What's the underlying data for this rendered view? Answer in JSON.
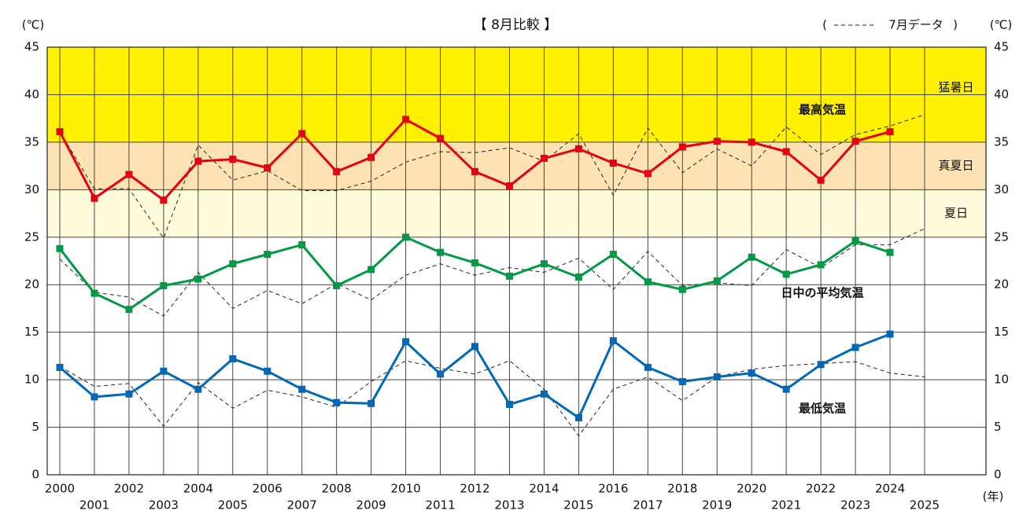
{
  "chart_data": {
    "type": "line",
    "title": "【 8月比較 】",
    "y_label": "(℃)",
    "x_label": "(年)",
    "categories": [
      "2000",
      "2001",
      "2002",
      "2003",
      "2004",
      "2005",
      "2006",
      "2007",
      "2008",
      "2009",
      "2010",
      "2011",
      "2012",
      "2013",
      "2014",
      "2015",
      "2016",
      "2017",
      "2018",
      "2019",
      "2020",
      "2021",
      "2022",
      "2023",
      "2024",
      "2025"
    ],
    "ylim": [
      0,
      45
    ],
    "yticks": [
      0,
      5,
      10,
      15,
      20,
      25,
      30,
      35,
      40,
      45
    ],
    "y2lim": [
      0,
      45
    ],
    "y2ticks": [
      0,
      5,
      10,
      15,
      20,
      25,
      30,
      35,
      40,
      45
    ],
    "grid": true,
    "bands": [
      {
        "label": "猛暑日",
        "from": 35,
        "to": 45,
        "color": "#fff100"
      },
      {
        "label": "真夏日",
        "from": 30,
        "to": 35,
        "color": "#fde2b4"
      },
      {
        "label": "夏日",
        "from": 25,
        "to": 30,
        "color": "#fffbdb"
      }
    ],
    "series": [
      {
        "name": "最高気温",
        "color": "#e60012",
        "values": [
          36.1,
          29.1,
          31.6,
          28.9,
          33.0,
          33.2,
          32.3,
          35.9,
          31.9,
          33.4,
          37.4,
          35.4,
          31.9,
          30.4,
          33.3,
          34.3,
          32.8,
          31.7,
          34.5,
          35.1,
          35.0,
          34.0,
          31.0,
          35.1,
          36.1,
          null
        ]
      },
      {
        "name": "日中の平均気温",
        "color": "#009944",
        "values": [
          23.8,
          19.1,
          17.4,
          19.9,
          20.6,
          22.2,
          23.2,
          24.2,
          19.9,
          21.6,
          25.0,
          23.4,
          22.3,
          20.9,
          22.2,
          20.8,
          23.2,
          20.3,
          19.5,
          20.4,
          22.9,
          21.1,
          22.1,
          24.6,
          23.4,
          null
        ]
      },
      {
        "name": "最低気温",
        "color": "#0068b7",
        "values": [
          11.3,
          8.2,
          8.5,
          10.9,
          9.0,
          12.2,
          10.9,
          9.0,
          7.6,
          7.5,
          14.0,
          10.6,
          13.5,
          7.4,
          8.5,
          6.0,
          14.1,
          11.3,
          9.8,
          10.3,
          10.7,
          9.0,
          11.6,
          13.4,
          14.8,
          null
        ]
      }
    ],
    "reference": {
      "open": "(",
      "name": "7月データ",
      "close": ")",
      "color": "#222222",
      "series": [
        {
          "values": [
            36.1,
            30.1,
            30.1,
            24.9,
            34.7,
            31.0,
            32.0,
            29.9,
            29.9,
            30.9,
            32.9,
            34.0,
            33.9,
            34.4,
            33.0,
            35.9,
            29.4,
            36.5,
            31.8,
            34.3,
            32.5,
            36.6,
            33.7,
            35.8,
            36.7,
            37.9
          ]
        },
        {
          "values": [
            22.7,
            19.2,
            18.7,
            16.7,
            21.3,
            17.5,
            19.4,
            18.0,
            20.1,
            18.4,
            21.0,
            22.2,
            21.0,
            21.8,
            21.3,
            22.8,
            19.5,
            23.5,
            19.9,
            20.2,
            19.9,
            23.7,
            21.8,
            24.2,
            24.2,
            25.9
          ]
        },
        {
          "values": [
            11.4,
            9.3,
            9.6,
            5.1,
            9.7,
            7.0,
            8.9,
            8.2,
            7.1,
            9.8,
            12.0,
            11.2,
            10.6,
            12.0,
            9.0,
            4.1,
            9.0,
            10.3,
            7.8,
            10.3,
            11.1,
            11.5,
            11.7,
            11.9,
            10.7,
            10.3
          ]
        }
      ]
    }
  }
}
